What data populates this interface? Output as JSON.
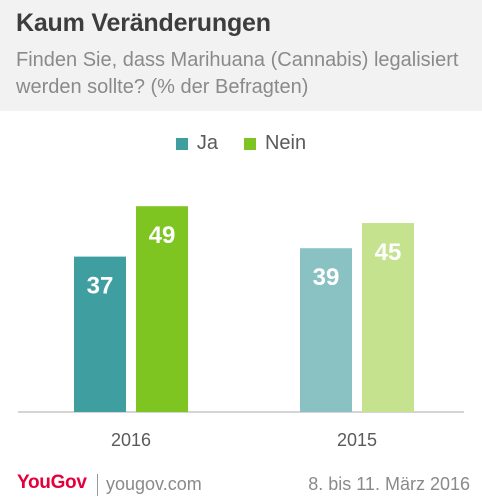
{
  "header": {
    "title": "Kaum Veränderungen",
    "subtitle": "Finden Sie, dass Marihuana (Cannabis) legalisiert werden sollte? (% der Befragten)"
  },
  "footer": {
    "brand": "YouGov",
    "site": "yougov.com",
    "dates": "8. bis 11. März 2016"
  },
  "colors": {
    "ja_2016": "#3f9ea0",
    "nein_2016": "#7ec521",
    "ja_2015": "#8ac2c4",
    "nein_2015": "#c5e38e",
    "axis": "#aaaaaa",
    "header_bg": "#f2f2f2"
  },
  "chart_data": {
    "type": "bar",
    "title": "Kaum Veränderungen",
    "subtitle": "Finden Sie, dass Marihuana (Cannabis) legalisiert werden sollte? (% der Befragten)",
    "categories": [
      "2016",
      "2015"
    ],
    "series": [
      {
        "name": "Ja",
        "values": [
          37,
          39
        ]
      },
      {
        "name": "Nein",
        "values": [
          49,
          45
        ]
      }
    ],
    "data_labels": true,
    "legend": "top-center",
    "grid": false,
    "ylim": [
      0,
      60
    ]
  }
}
